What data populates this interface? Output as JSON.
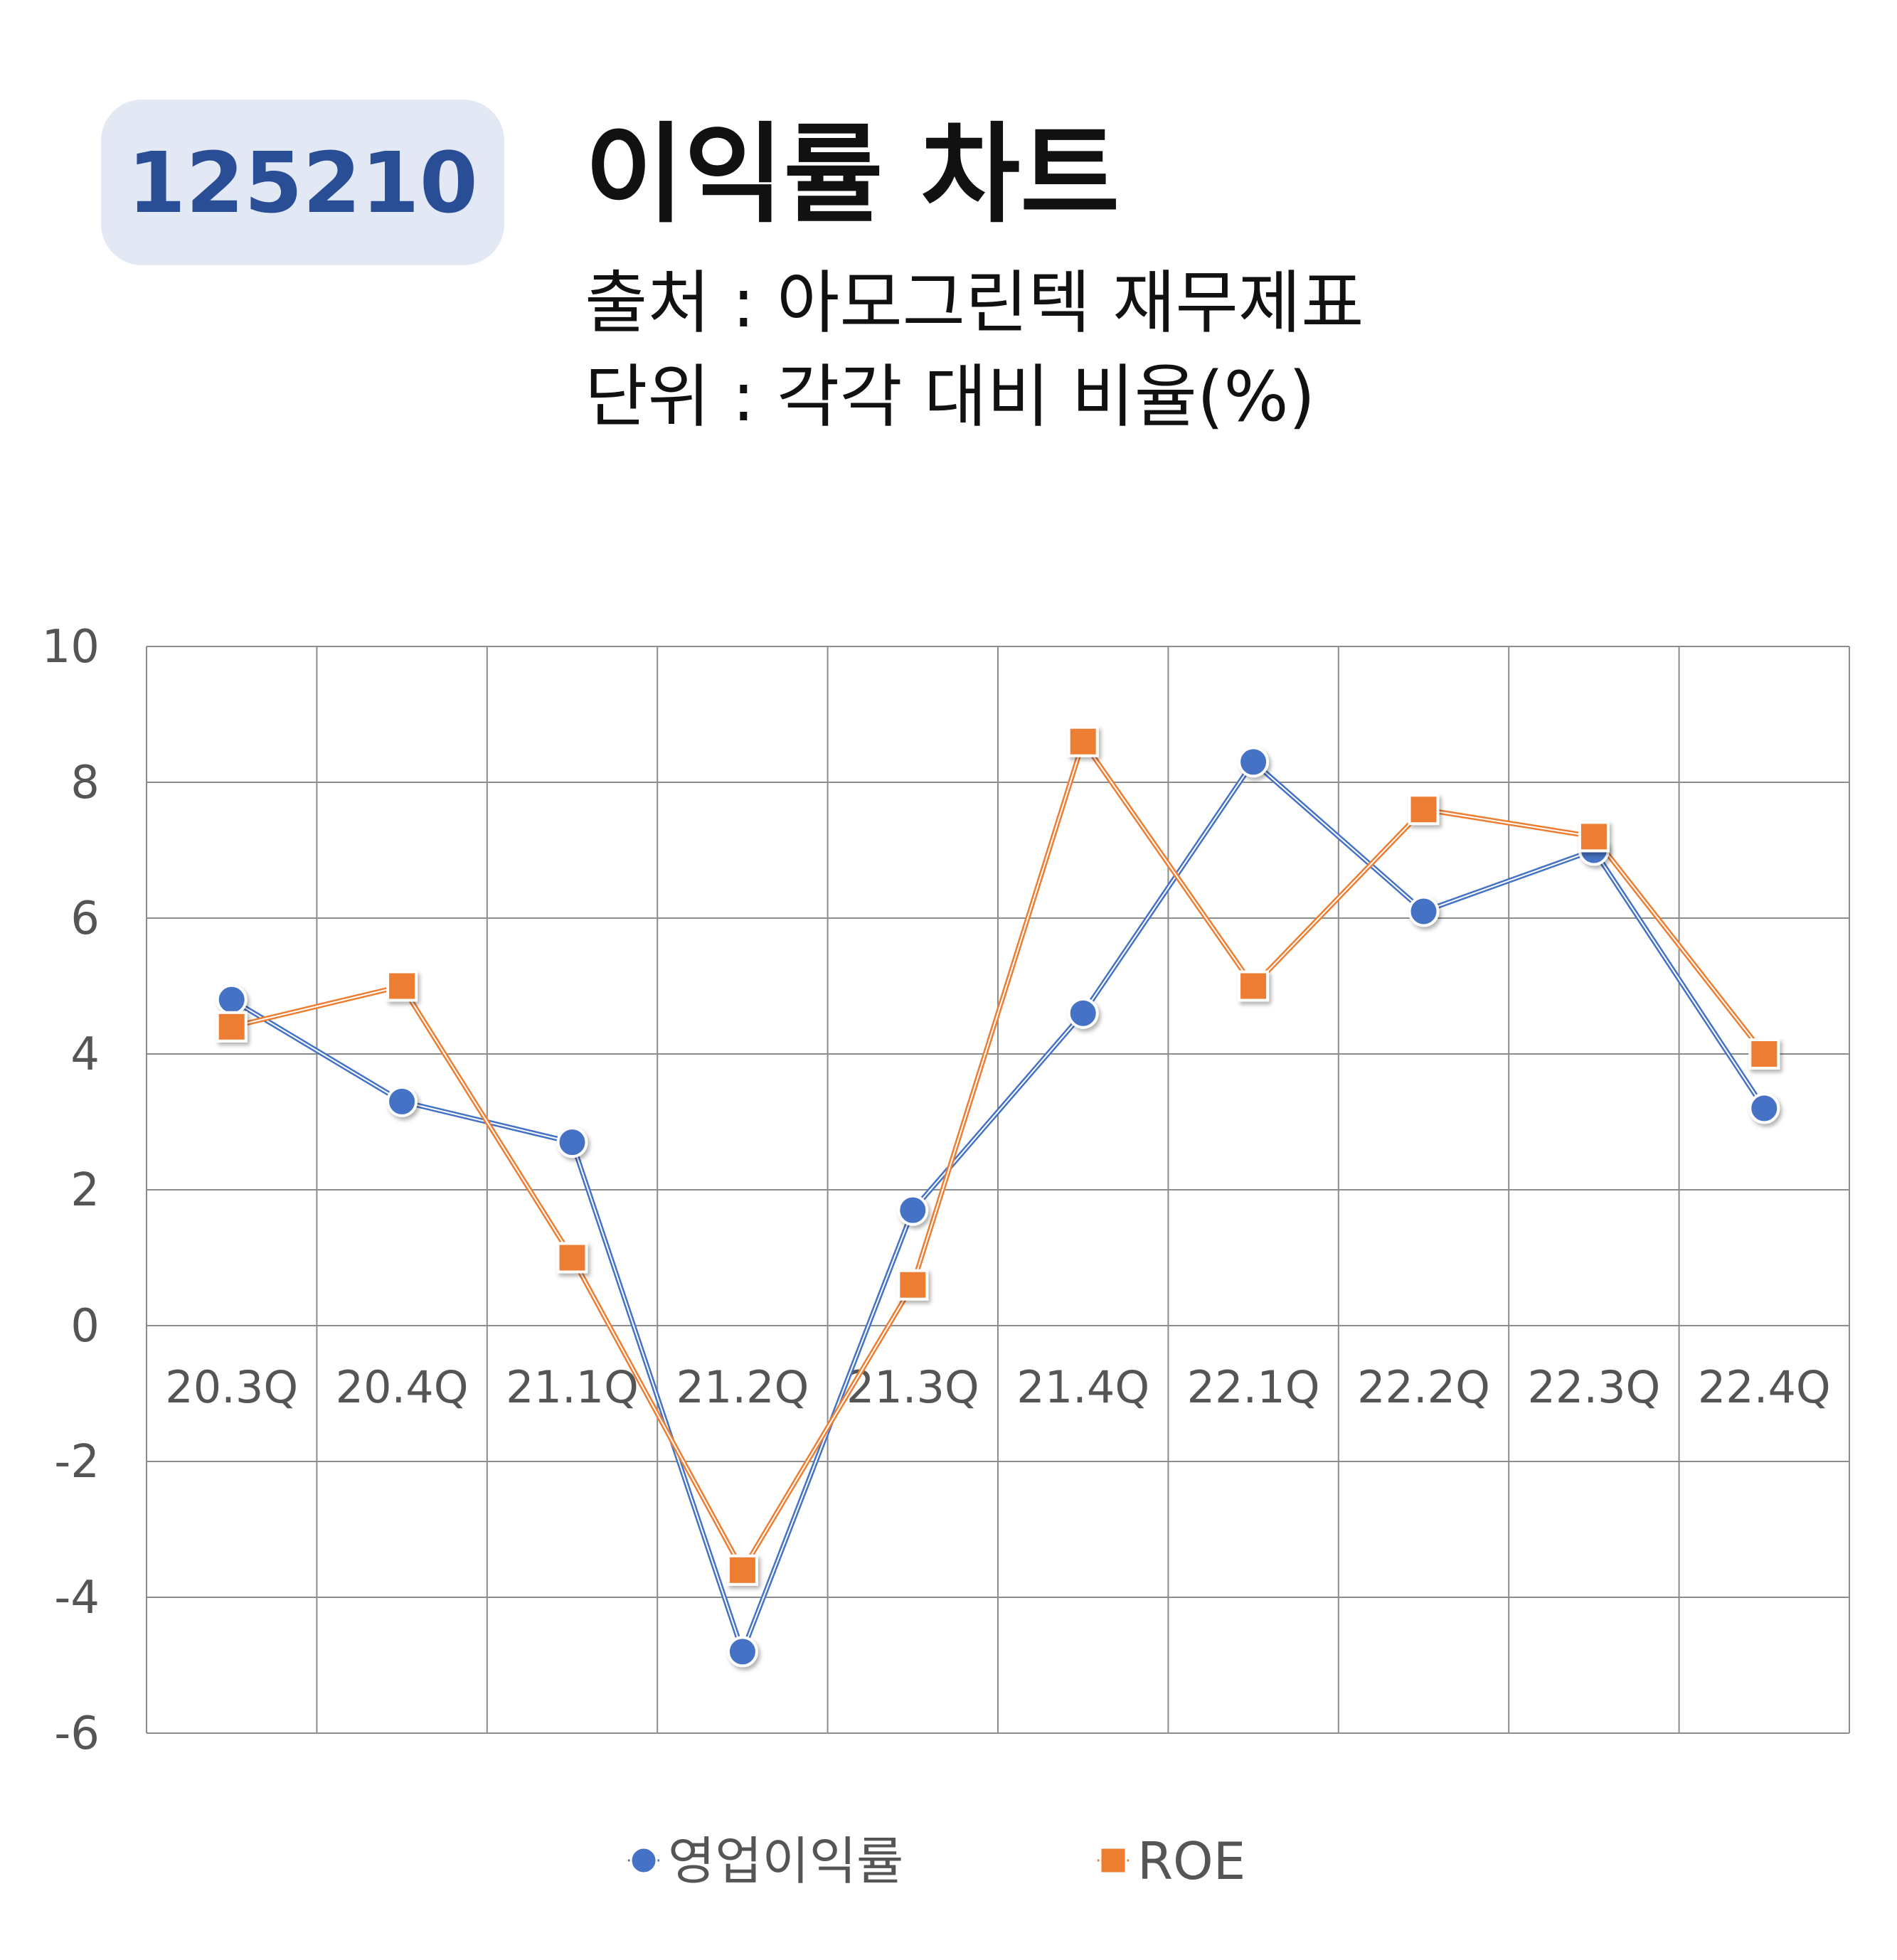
{
  "header": {
    "code": "125210",
    "title": "이익률 차트",
    "source_line": "출처 : 아모그린텍 재무제표",
    "unit_line": "단위 : 각각 대비 비율(%)"
  },
  "colors": {
    "badge_bg": "#e3e8f5",
    "badge_text": "#2a4e96",
    "series_operating": "#4472c4",
    "series_roe": "#ed7d31",
    "grid": "#8c8c8c"
  },
  "chart_data": {
    "type": "line",
    "categories": [
      "20.3Q",
      "20.4Q",
      "21.1Q",
      "21.2Q",
      "21.3Q",
      "21.4Q",
      "22.1Q",
      "22.2Q",
      "22.3Q",
      "22.4Q"
    ],
    "series": [
      {
        "name": "영업이익률",
        "marker": "circle",
        "color": "#4472c4",
        "values": [
          4.8,
          3.3,
          2.7,
          -4.8,
          1.7,
          4.6,
          8.3,
          6.1,
          7.0,
          3.2
        ]
      },
      {
        "name": "ROE",
        "marker": "square",
        "color": "#ed7d31",
        "values": [
          4.4,
          5.0,
          1.0,
          -3.6,
          0.6,
          8.6,
          5.0,
          7.6,
          7.2,
          4.0
        ]
      }
    ],
    "ylim": [
      -6,
      10
    ],
    "yticks": [
      "10",
      "8",
      "6",
      "4",
      "2",
      "0",
      "-2",
      "-4",
      "-6"
    ],
    "grid": true,
    "legend_position": "bottom"
  }
}
